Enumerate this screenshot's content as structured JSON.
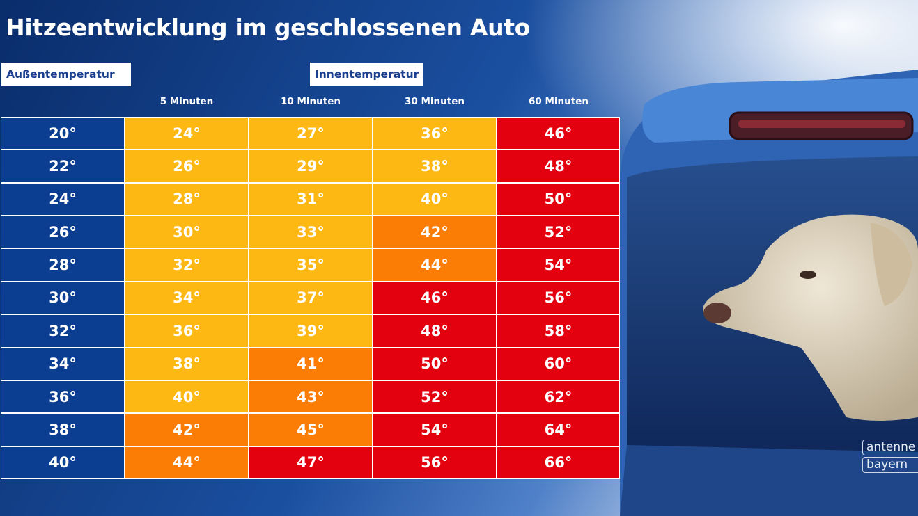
{
  "chart_data": {
    "type": "table",
    "title": "Hitzeentwicklung im geschlossenen Auto",
    "row_header_label": "Außentemperatur",
    "column_group_label": "Innentemperatur",
    "columns": [
      "5 Minuten",
      "10 Minuten",
      "30 Minuten",
      "60 Minuten"
    ],
    "outside_temperatures": [
      "20°",
      "22°",
      "24°",
      "26°",
      "28°",
      "30°",
      "32°",
      "34°",
      "36°",
      "38°",
      "40°"
    ],
    "rows": [
      [
        "24°",
        "27°",
        "36°",
        "46°"
      ],
      [
        "26°",
        "29°",
        "38°",
        "48°"
      ],
      [
        "28°",
        "31°",
        "40°",
        "50°"
      ],
      [
        "30°",
        "33°",
        "42°",
        "52°"
      ],
      [
        "32°",
        "35°",
        "44°",
        "54°"
      ],
      [
        "34°",
        "37°",
        "46°",
        "56°"
      ],
      [
        "36°",
        "39°",
        "48°",
        "58°"
      ],
      [
        "38°",
        "41°",
        "50°",
        "60°"
      ],
      [
        "40°",
        "43°",
        "52°",
        "62°"
      ],
      [
        "42°",
        "45°",
        "54°",
        "64°"
      ],
      [
        "44°",
        "47°",
        "56°",
        "66°"
      ]
    ],
    "cell_levels": [
      [
        "yellow",
        "yellow",
        "yellow",
        "red"
      ],
      [
        "yellow",
        "yellow",
        "yellow",
        "red"
      ],
      [
        "yellow",
        "yellow",
        "yellow",
        "red"
      ],
      [
        "yellow",
        "yellow",
        "orange",
        "red"
      ],
      [
        "yellow",
        "yellow",
        "orange",
        "red"
      ],
      [
        "yellow",
        "yellow",
        "red",
        "red"
      ],
      [
        "yellow",
        "yellow",
        "red",
        "red"
      ],
      [
        "yellow",
        "orange",
        "red",
        "red"
      ],
      [
        "yellow",
        "orange",
        "red",
        "red"
      ],
      [
        "orange",
        "orange",
        "red",
        "red"
      ],
      [
        "orange",
        "red",
        "red",
        "red"
      ]
    ],
    "colors": {
      "blue": "#0b3d91",
      "yellow": "#fdb813",
      "orange": "#fb7d05",
      "red": "#e3000f"
    }
  },
  "logo": {
    "line1": "antenne",
    "line2": "bayern"
  },
  "background": {
    "icons": [
      "car-rear-icon",
      "dog-icon"
    ]
  }
}
